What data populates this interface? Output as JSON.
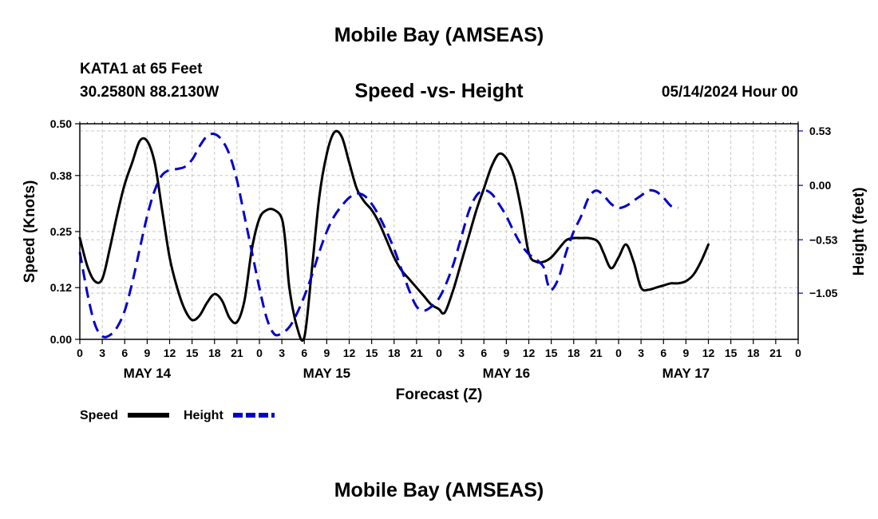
{
  "title": "Mobile Bay (AMSEAS)",
  "footer_title": "Mobile Bay (AMSEAS)",
  "station": "KATA1 at 65 Feet",
  "coords": "30.2580N  88.2130W",
  "issued": "05/14/2024 Hour 00",
  "chart_data": {
    "type": "line",
    "title": "Speed -vs- Height",
    "xlabel": "Forecast (Z)",
    "ylabel_left": "Speed (Knots)",
    "ylabel_right": "Height (feet)",
    "x_unit": "hours from 05/14/2024 00Z",
    "xlim": [
      0,
      96
    ],
    "x_ticks": [
      0,
      3,
      6,
      9,
      12,
      15,
      18,
      21,
      24,
      27,
      30,
      33,
      36,
      39,
      42,
      45,
      48,
      51,
      54,
      57,
      60,
      63,
      66,
      69,
      72,
      75,
      78,
      81,
      84,
      87,
      90,
      93,
      96
    ],
    "x_tick_labels": [
      "0",
      "3",
      "6",
      "9",
      "12",
      "15",
      "18",
      "21",
      "0",
      "3",
      "6",
      "9",
      "12",
      "15",
      "18",
      "21",
      "0",
      "3",
      "6",
      "9",
      "12",
      "15",
      "18",
      "21",
      "0",
      "3",
      "6",
      "9",
      "12",
      "15",
      "18",
      "21",
      "0"
    ],
    "day_labels": [
      {
        "x": 9,
        "label": "MAY 14"
      },
      {
        "x": 33,
        "label": "MAY 15"
      },
      {
        "x": 57,
        "label": "MAY 16"
      },
      {
        "x": 81,
        "label": "MAY 17"
      }
    ],
    "y_left": {
      "lim": [
        0,
        0.5
      ],
      "ticks": [
        0.0,
        0.12,
        0.25,
        0.38,
        0.5
      ],
      "tick_labels": [
        "0.00",
        "0.12",
        "0.25",
        "0.38",
        "0.50"
      ]
    },
    "y_right": {
      "lim": [
        -1.5,
        0.6
      ],
      "ticks": [
        -1.05,
        -0.53,
        0.0,
        0.53
      ],
      "tick_labels": [
        "−1.05",
        "−0.53",
        "0.00",
        "0.53"
      ]
    },
    "series": [
      {
        "name": "Speed",
        "axis": "left",
        "color": "#000000",
        "style": "solid",
        "points": [
          [
            0,
            0.235
          ],
          [
            1,
            0.17
          ],
          [
            2,
            0.135
          ],
          [
            3,
            0.14
          ],
          [
            4,
            0.21
          ],
          [
            5,
            0.29
          ],
          [
            6,
            0.36
          ],
          [
            7,
            0.41
          ],
          [
            8,
            0.46
          ],
          [
            9,
            0.46
          ],
          [
            10,
            0.41
          ],
          [
            11,
            0.3
          ],
          [
            12,
            0.19
          ],
          [
            13,
            0.12
          ],
          [
            14,
            0.07
          ],
          [
            15,
            0.045
          ],
          [
            16,
            0.055
          ],
          [
            17,
            0.085
          ],
          [
            18,
            0.105
          ],
          [
            19,
            0.09
          ],
          [
            20,
            0.05
          ],
          [
            21,
            0.04
          ],
          [
            22,
            0.09
          ],
          [
            23,
            0.21
          ],
          [
            24,
            0.28
          ],
          [
            25,
            0.3
          ],
          [
            26,
            0.3
          ],
          [
            27,
            0.28
          ],
          [
            27.5,
            0.22
          ],
          [
            28,
            0.12
          ],
          [
            29,
            0.03
          ],
          [
            30,
            0.005
          ],
          [
            31,
            0.16
          ],
          [
            32,
            0.33
          ],
          [
            33,
            0.43
          ],
          [
            34,
            0.48
          ],
          [
            35,
            0.47
          ],
          [
            36,
            0.41
          ],
          [
            37,
            0.35
          ],
          [
            38,
            0.32
          ],
          [
            39,
            0.3
          ],
          [
            40,
            0.27
          ],
          [
            41,
            0.23
          ],
          [
            42,
            0.19
          ],
          [
            43,
            0.16
          ],
          [
            44,
            0.14
          ],
          [
            45,
            0.12
          ],
          [
            46,
            0.1
          ],
          [
            47,
            0.08
          ],
          [
            48,
            0.07
          ],
          [
            48.5,
            0.06
          ],
          [
            49,
            0.07
          ],
          [
            50,
            0.12
          ],
          [
            51,
            0.18
          ],
          [
            52,
            0.24
          ],
          [
            53,
            0.3
          ],
          [
            54,
            0.35
          ],
          [
            55,
            0.4
          ],
          [
            56,
            0.43
          ],
          [
            57,
            0.42
          ],
          [
            58,
            0.38
          ],
          [
            59,
            0.3
          ],
          [
            60,
            0.2
          ],
          [
            61,
            0.18
          ],
          [
            62,
            0.18
          ],
          [
            63,
            0.19
          ],
          [
            64,
            0.21
          ],
          [
            65,
            0.23
          ],
          [
            66,
            0.235
          ],
          [
            67,
            0.235
          ],
          [
            68,
            0.235
          ],
          [
            69,
            0.23
          ],
          [
            69.5,
            0.22
          ],
          [
            70,
            0.2
          ],
          [
            71,
            0.165
          ],
          [
            72,
            0.19
          ],
          [
            73,
            0.22
          ],
          [
            74,
            0.18
          ],
          [
            75,
            0.12
          ],
          [
            76,
            0.115
          ],
          [
            77,
            0.12
          ],
          [
            78,
            0.125
          ],
          [
            79,
            0.13
          ],
          [
            80,
            0.13
          ],
          [
            81,
            0.135
          ],
          [
            82,
            0.15
          ],
          [
            83,
            0.18
          ],
          [
            84,
            0.22
          ]
        ]
      },
      {
        "name": "Height",
        "axis": "right",
        "color": "#0000cc",
        "style": "dashed",
        "points": [
          [
            0,
            -0.65
          ],
          [
            1,
            -1.05
          ],
          [
            2,
            -1.35
          ],
          [
            3,
            -1.47
          ],
          [
            4,
            -1.46
          ],
          [
            5,
            -1.38
          ],
          [
            6,
            -1.22
          ],
          [
            7,
            -0.95
          ],
          [
            8,
            -0.62
          ],
          [
            9,
            -0.3
          ],
          [
            10,
            -0.05
          ],
          [
            11,
            0.1
          ],
          [
            12,
            0.15
          ],
          [
            13,
            0.16
          ],
          [
            14,
            0.18
          ],
          [
            15,
            0.25
          ],
          [
            16,
            0.38
          ],
          [
            17,
            0.48
          ],
          [
            18,
            0.5
          ],
          [
            19,
            0.44
          ],
          [
            20,
            0.3
          ],
          [
            21,
            0.05
          ],
          [
            22,
            -0.3
          ],
          [
            23,
            -0.65
          ],
          [
            24,
            -1.0
          ],
          [
            25,
            -1.3
          ],
          [
            26,
            -1.45
          ],
          [
            27,
            -1.44
          ],
          [
            28,
            -1.38
          ],
          [
            29,
            -1.25
          ],
          [
            30,
            -1.08
          ],
          [
            31,
            -0.88
          ],
          [
            32,
            -0.65
          ],
          [
            33,
            -0.45
          ],
          [
            34,
            -0.3
          ],
          [
            35,
            -0.2
          ],
          [
            36,
            -0.12
          ],
          [
            37,
            -0.08
          ],
          [
            38,
            -0.1
          ],
          [
            39,
            -0.18
          ],
          [
            40,
            -0.3
          ],
          [
            41,
            -0.45
          ],
          [
            42,
            -0.62
          ],
          [
            43,
            -0.82
          ],
          [
            44,
            -1.02
          ],
          [
            45,
            -1.18
          ],
          [
            46,
            -1.22
          ],
          [
            47,
            -1.18
          ],
          [
            48,
            -1.1
          ],
          [
            49,
            -0.95
          ],
          [
            50,
            -0.75
          ],
          [
            51,
            -0.5
          ],
          [
            52,
            -0.25
          ],
          [
            53,
            -0.1
          ],
          [
            54,
            -0.05
          ],
          [
            55,
            -0.08
          ],
          [
            56,
            -0.18
          ],
          [
            57,
            -0.3
          ],
          [
            58,
            -0.45
          ],
          [
            59,
            -0.58
          ],
          [
            60,
            -0.67
          ],
          [
            61,
            -0.72
          ],
          [
            62,
            -0.8
          ],
          [
            62.5,
            -0.95
          ],
          [
            63,
            -1.02
          ],
          [
            64,
            -0.9
          ],
          [
            65,
            -0.65
          ],
          [
            66,
            -0.45
          ],
          [
            67,
            -0.3
          ],
          [
            68,
            -0.12
          ],
          [
            69,
            -0.05
          ],
          [
            70,
            -0.1
          ],
          [
            71,
            -0.18
          ],
          [
            72,
            -0.22
          ],
          [
            73,
            -0.2
          ],
          [
            74,
            -0.15
          ],
          [
            75,
            -0.1
          ],
          [
            76,
            -0.05
          ],
          [
            77,
            -0.06
          ],
          [
            78,
            -0.12
          ],
          [
            79,
            -0.2
          ],
          [
            80,
            -0.22
          ]
        ]
      }
    ],
    "legend": [
      {
        "label": "Speed",
        "color": "#000000",
        "style": "solid"
      },
      {
        "label": "Height",
        "color": "#0000cc",
        "style": "dashed"
      }
    ],
    "grid": true
  }
}
